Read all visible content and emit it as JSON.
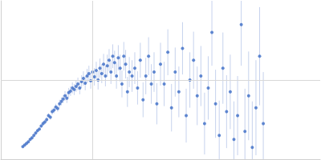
{
  "chart_data": {
    "type": "scatter",
    "color": "#3b6bc6",
    "marker": "circle",
    "grid": true,
    "tick_labels": false,
    "xlim": [
      0,
      0.348
    ],
    "xticks": [
      0.1
    ],
    "ylim": [
      0,
      2
    ],
    "yticks": [
      1
    ],
    "x": [
      0.024,
      0.026,
      0.028,
      0.03,
      0.032,
      0.034,
      0.036,
      0.038,
      0.04,
      0.042,
      0.044,
      0.046,
      0.048,
      0.05,
      0.052,
      0.054,
      0.056,
      0.058,
      0.06,
      0.062,
      0.064,
      0.066,
      0.068,
      0.07,
      0.072,
      0.074,
      0.076,
      0.078,
      0.08,
      0.082,
      0.084,
      0.086,
      0.088,
      0.09,
      0.092,
      0.094,
      0.096,
      0.098,
      0.1,
      0.102,
      0.104,
      0.106,
      0.108,
      0.11,
      0.112,
      0.114,
      0.116,
      0.118,
      0.12,
      0.122,
      0.124,
      0.126,
      0.128,
      0.13,
      0.132,
      0.134,
      0.136,
      0.138,
      0.14,
      0.143,
      0.146,
      0.149,
      0.152,
      0.155,
      0.158,
      0.161,
      0.164,
      0.167,
      0.17,
      0.174,
      0.178,
      0.182,
      0.186,
      0.19,
      0.194,
      0.198,
      0.202,
      0.206,
      0.21,
      0.214,
      0.218,
      0.222,
      0.226,
      0.23,
      0.234,
      0.238,
      0.242,
      0.246,
      0.25,
      0.254,
      0.258,
      0.262,
      0.266,
      0.27,
      0.274,
      0.278,
      0.282,
      0.286
    ],
    "values": [
      0.16,
      0.18,
      0.2,
      0.22,
      0.25,
      0.27,
      0.3,
      0.33,
      0.36,
      0.38,
      0.42,
      0.45,
      0.47,
      0.5,
      0.55,
      0.53,
      0.6,
      0.62,
      0.66,
      0.64,
      0.7,
      0.73,
      0.76,
      0.8,
      0.77,
      0.84,
      0.86,
      0.9,
      0.88,
      0.92,
      0.95,
      0.9,
      0.98,
      1.02,
      0.96,
      1.05,
      1.08,
      0.99,
      1.1,
      1.04,
      1.12,
      1.0,
      1.15,
      1.08,
      1.2,
      1.05,
      1.18,
      1.25,
      1.1,
      1.3,
      1.22,
      1.05,
      1.28,
      1.15,
      0.95,
      1.3,
      1.2,
      0.85,
      1.1,
      1.05,
      1.15,
      0.9,
      1.25,
      0.75,
      1.05,
      1.3,
      0.95,
      1.1,
      0.7,
      1.2,
      0.95,
      1.35,
      0.65,
      1.1,
      0.85,
      1.4,
      0.55,
      1.0,
      1.25,
      0.8,
      1.05,
      0.45,
      0.9,
      1.6,
      0.7,
      0.3,
      1.15,
      0.6,
      0.85,
      0.25,
      0.55,
      1.7,
      0.35,
      0.8,
      0.15,
      0.65,
      1.3,
      0.45
    ],
    "errors": [
      0.01,
      0.01,
      0.01,
      0.01,
      0.01,
      0.02,
      0.02,
      0.02,
      0.02,
      0.02,
      0.02,
      0.03,
      0.03,
      0.03,
      0.03,
      0.03,
      0.04,
      0.04,
      0.04,
      0.04,
      0.05,
      0.05,
      0.05,
      0.06,
      0.06,
      0.06,
      0.06,
      0.07,
      0.07,
      0.07,
      0.08,
      0.08,
      0.08,
      0.09,
      0.09,
      0.09,
      0.1,
      0.1,
      0.1,
      0.11,
      0.11,
      0.12,
      0.12,
      0.12,
      0.13,
      0.13,
      0.14,
      0.14,
      0.15,
      0.15,
      0.15,
      0.16,
      0.16,
      0.17,
      0.17,
      0.18,
      0.18,
      0.19,
      0.19,
      0.2,
      0.2,
      0.21,
      0.22,
      0.22,
      0.23,
      0.24,
      0.25,
      0.25,
      0.26,
      0.27,
      0.28,
      0.29,
      0.3,
      0.31,
      0.32,
      0.33,
      0.34,
      0.35,
      0.36,
      0.37,
      0.38,
      0.39,
      0.4,
      0.42,
      0.43,
      0.44,
      0.45,
      0.46,
      0.47,
      0.48,
      0.5,
      0.52,
      0.54,
      0.56,
      0.58,
      0.6,
      0.62,
      0.65
    ]
  }
}
